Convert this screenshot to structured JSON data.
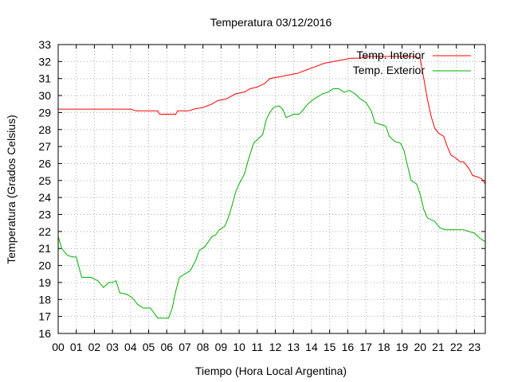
{
  "chart_data": {
    "type": "line",
    "title": "Temperatura 03/12/2016",
    "xlabel": "Tiempo (Hora Local Argentina)",
    "ylabel": "Temperatura (Grados Celsius)",
    "xlim": [
      0,
      23.6
    ],
    "ylim": [
      16,
      33
    ],
    "x_ticks": [
      "00",
      "01",
      "02",
      "03",
      "04",
      "05",
      "06",
      "07",
      "08",
      "09",
      "10",
      "11",
      "12",
      "13",
      "14",
      "15",
      "16",
      "17",
      "18",
      "19",
      "20",
      "21",
      "22",
      "23"
    ],
    "y_ticks": [
      "16",
      "17",
      "18",
      "19",
      "20",
      "21",
      "22",
      "23",
      "24",
      "25",
      "26",
      "27",
      "28",
      "29",
      "30",
      "31",
      "32",
      "33"
    ],
    "grid": true,
    "legend_position": "top-right",
    "series": [
      {
        "name": "Temp. Interior",
        "color": "#ff0000",
        "points": [
          [
            0,
            29.2
          ],
          [
            1,
            29.2
          ],
          [
            2,
            29.2
          ],
          [
            3,
            29.2
          ],
          [
            4,
            29.2
          ],
          [
            4.3,
            29.1
          ],
          [
            5.5,
            29.1
          ],
          [
            5.6,
            28.9
          ],
          [
            6.5,
            28.9
          ],
          [
            6.6,
            29.1
          ],
          [
            7.2,
            29.1
          ],
          [
            7.5,
            29.2
          ],
          [
            8,
            29.3
          ],
          [
            8.5,
            29.5
          ],
          [
            8.8,
            29.7
          ],
          [
            9.3,
            29.8
          ],
          [
            9.8,
            30.1
          ],
          [
            10.3,
            30.2
          ],
          [
            10.6,
            30.4
          ],
          [
            11,
            30.5
          ],
          [
            11.4,
            30.7
          ],
          [
            11.7,
            31
          ],
          [
            12.2,
            31.1
          ],
          [
            12.7,
            31.2
          ],
          [
            13.2,
            31.3
          ],
          [
            13.7,
            31.5
          ],
          [
            14.2,
            31.7
          ],
          [
            14.7,
            31.9
          ],
          [
            15.2,
            32
          ],
          [
            15.7,
            32.1
          ],
          [
            16.2,
            32.2
          ],
          [
            16.7,
            32.2
          ],
          [
            17.2,
            32.3
          ],
          [
            17.7,
            32.3
          ],
          [
            18.2,
            32.3
          ],
          [
            18.7,
            32.3
          ],
          [
            19.2,
            32.3
          ],
          [
            19.6,
            32.3
          ],
          [
            20,
            32.2
          ],
          [
            20.2,
            31
          ],
          [
            20.4,
            29.8
          ],
          [
            20.6,
            28.8
          ],
          [
            20.8,
            28.1
          ],
          [
            21,
            27.8
          ],
          [
            21.3,
            27.6
          ],
          [
            21.5,
            27
          ],
          [
            21.7,
            26.5
          ],
          [
            22,
            26.3
          ],
          [
            22.2,
            26.1
          ],
          [
            22.4,
            26.1
          ],
          [
            22.7,
            25.7
          ],
          [
            22.9,
            25.3
          ],
          [
            23.2,
            25.2
          ],
          [
            23.4,
            25.1
          ],
          [
            23.6,
            24.8
          ]
        ]
      },
      {
        "name": "Temp. Exterior",
        "color": "#00b000",
        "points": [
          [
            0,
            21.7
          ],
          [
            0.2,
            21
          ],
          [
            0.5,
            20.6
          ],
          [
            0.8,
            20.5
          ],
          [
            1,
            20.5
          ],
          [
            1.3,
            19.3
          ],
          [
            1.8,
            19.3
          ],
          [
            2.2,
            19.1
          ],
          [
            2.5,
            18.7
          ],
          [
            2.8,
            19
          ],
          [
            3,
            19
          ],
          [
            3.2,
            19.1
          ],
          [
            3.4,
            18.4
          ],
          [
            3.8,
            18.3
          ],
          [
            4.1,
            18.1
          ],
          [
            4.4,
            17.7
          ],
          [
            4.7,
            17.5
          ],
          [
            5.1,
            17.5
          ],
          [
            5.5,
            16.9
          ],
          [
            6.1,
            16.9
          ],
          [
            6.3,
            17.5
          ],
          [
            6.5,
            18.5
          ],
          [
            6.7,
            19.3
          ],
          [
            7,
            19.5
          ],
          [
            7.3,
            19.7
          ],
          [
            7.6,
            20.3
          ],
          [
            7.8,
            20.9
          ],
          [
            8.1,
            21.1
          ],
          [
            8.3,
            21.4
          ],
          [
            8.5,
            21.7
          ],
          [
            8.7,
            21.8
          ],
          [
            8.9,
            22.1
          ],
          [
            9.2,
            22.3
          ],
          [
            9.4,
            22.8
          ],
          [
            9.6,
            23.5
          ],
          [
            9.8,
            24.3
          ],
          [
            10,
            24.8
          ],
          [
            10.3,
            25.4
          ],
          [
            10.5,
            26.2
          ],
          [
            10.8,
            27.2
          ],
          [
            11,
            27.4
          ],
          [
            11.3,
            27.7
          ],
          [
            11.5,
            28.6
          ],
          [
            11.7,
            29
          ],
          [
            11.9,
            29.3
          ],
          [
            12.2,
            29.4
          ],
          [
            12.4,
            29.2
          ],
          [
            12.6,
            28.7
          ],
          [
            12.8,
            28.8
          ],
          [
            13,
            28.9
          ],
          [
            13.3,
            28.9
          ],
          [
            13.5,
            29.1
          ],
          [
            13.7,
            29.4
          ],
          [
            14,
            29.7
          ],
          [
            14.3,
            29.9
          ],
          [
            14.6,
            30.1
          ],
          [
            14.9,
            30.2
          ],
          [
            15.2,
            30.4
          ],
          [
            15.5,
            30.4
          ],
          [
            15.8,
            30.2
          ],
          [
            16.1,
            30.3
          ],
          [
            16.4,
            30.1
          ],
          [
            16.7,
            29.8
          ],
          [
            17,
            29.6
          ],
          [
            17.3,
            29.1
          ],
          [
            17.5,
            28.4
          ],
          [
            17.8,
            28.3
          ],
          [
            18.1,
            28.2
          ],
          [
            18.3,
            27.6
          ],
          [
            18.6,
            27.3
          ],
          [
            18.9,
            27.2
          ],
          [
            19.1,
            26.8
          ],
          [
            19.3,
            25.9
          ],
          [
            19.5,
            25
          ],
          [
            19.8,
            24.8
          ],
          [
            20,
            24.2
          ],
          [
            20.2,
            23.3
          ],
          [
            20.4,
            22.8
          ],
          [
            20.8,
            22.6
          ],
          [
            21.1,
            22.2
          ],
          [
            21.4,
            22.1
          ],
          [
            22,
            22.1
          ],
          [
            22.4,
            22.1
          ],
          [
            22.7,
            22
          ],
          [
            23,
            21.9
          ],
          [
            23.3,
            21.6
          ],
          [
            23.6,
            21.4
          ]
        ]
      }
    ]
  }
}
